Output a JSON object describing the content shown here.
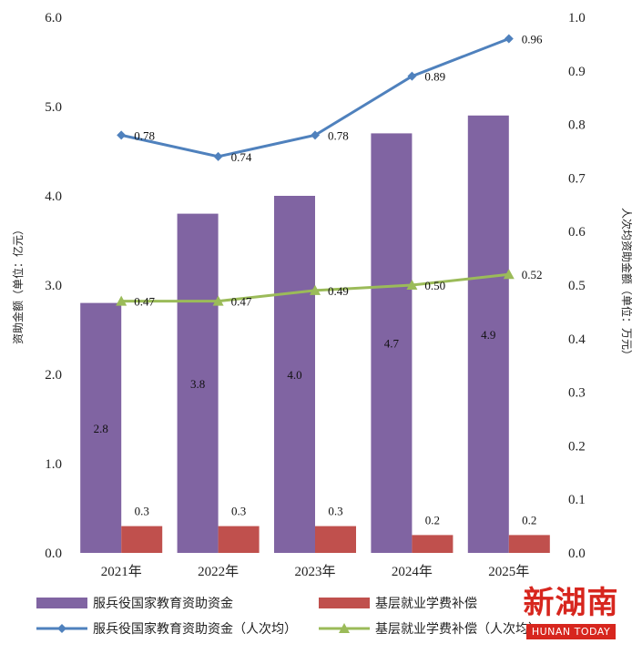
{
  "chart_data": {
    "type": "bar",
    "categories": [
      "2021年",
      "2022年",
      "2023年",
      "2024年",
      "2025年"
    ],
    "series": [
      {
        "name": "服兵役国家教育资助资金",
        "type": "bar",
        "axis": "left",
        "values": [
          2.8,
          3.8,
          4.0,
          4.7,
          4.9
        ],
        "labels": [
          "2.8",
          "3.8",
          "4.0",
          "4.7",
          "4.9"
        ],
        "color": "#8064a2"
      },
      {
        "name": "基层就业学费补偿",
        "type": "bar",
        "axis": "left",
        "values": [
          0.3,
          0.3,
          0.3,
          0.2,
          0.2
        ],
        "labels": [
          "0.3",
          "0.3",
          "0.3",
          "0.2",
          "0.2"
        ],
        "color": "#c0504d"
      },
      {
        "name": "服兵役国家教育资助资金（人次均）",
        "type": "line",
        "axis": "right",
        "marker": "diamond",
        "values": [
          0.78,
          0.74,
          0.78,
          0.89,
          0.96
        ],
        "labels": [
          "0.78",
          "0.74",
          "0.78",
          "0.89",
          "0.96"
        ],
        "color": "#4f81bd"
      },
      {
        "name": "基层就业学费补偿（人次均）",
        "type": "line",
        "axis": "right",
        "marker": "triangle",
        "values": [
          0.47,
          0.47,
          0.49,
          0.5,
          0.52
        ],
        "labels": [
          "0.47",
          "0.47",
          "0.49",
          "0.50",
          "0.52"
        ],
        "color": "#9bbb59"
      }
    ],
    "ylabel": "资助金额（单位：亿元）",
    "ylabel_right": "人次均资助金额（单位：万元）",
    "ylim": [
      0,
      6
    ],
    "ylim_right": [
      0,
      1
    ],
    "yticks": [
      "0.0",
      "1.0",
      "2.0",
      "3.0",
      "4.0",
      "5.0",
      "6.0"
    ],
    "yticks_right": [
      "0.0",
      "0.1",
      "0.2",
      "0.3",
      "0.4",
      "0.5",
      "0.6",
      "0.7",
      "0.8",
      "0.9",
      "1.0"
    ],
    "grid": false,
    "legend_position": "bottom"
  },
  "watermark": {
    "logo": "新湖南",
    "subtitle": "HUNAN TODAY"
  }
}
